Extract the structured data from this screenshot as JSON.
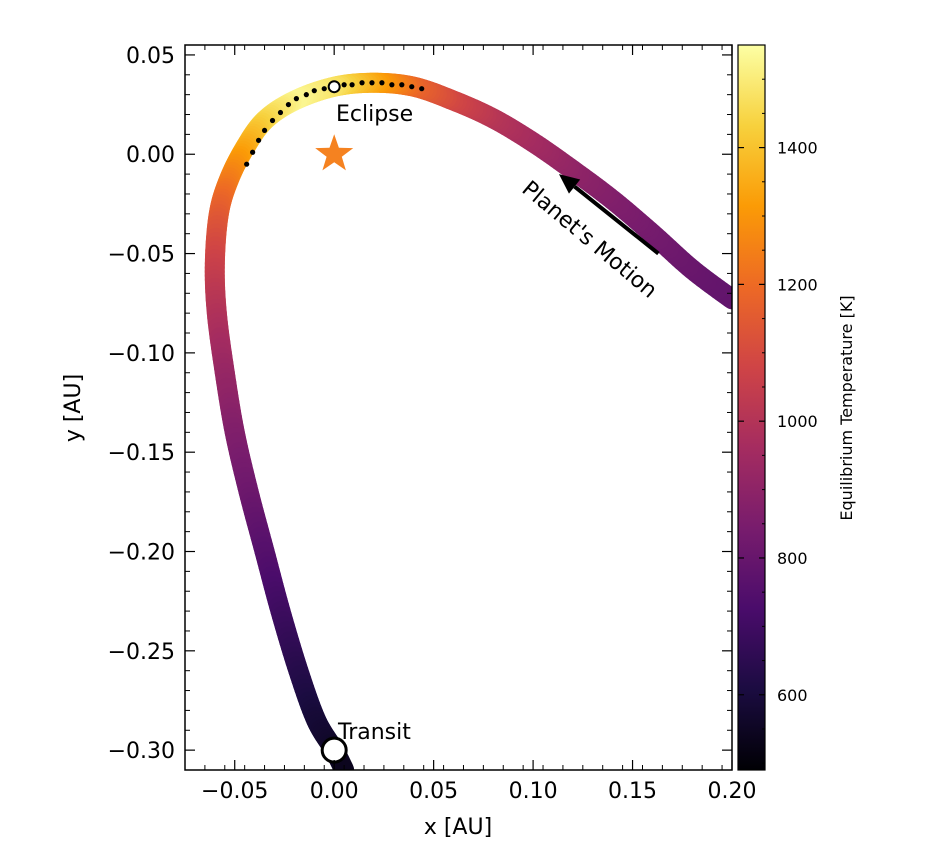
{
  "chart_data": {
    "type": "scatter",
    "title": "",
    "xlabel": "x [AU]",
    "ylabel": "y [AU]",
    "xlim": [
      -0.075,
      0.2
    ],
    "ylim": [
      -0.31,
      0.055
    ],
    "xticks": [
      -0.05,
      0.0,
      0.05,
      0.1,
      0.15,
      0.2
    ],
    "xtick_labels": [
      "−0.05",
      "0.00",
      "0.05",
      "0.10",
      "0.15",
      "0.20"
    ],
    "yticks": [
      0.05,
      0.0,
      -0.05,
      -0.1,
      -0.15,
      -0.2,
      -0.25,
      -0.3
    ],
    "ytick_labels": [
      "0.05",
      "0.00",
      "−0.05",
      "−0.10",
      "−0.15",
      "−0.20",
      "−0.25",
      "−0.30"
    ],
    "grid": false,
    "orbit": {
      "description": "planet orbit colored by equilibrium temperature",
      "points": [
        {
          "x": 0.2,
          "y": -0.073,
          "temp": 780
        },
        {
          "x": 0.18,
          "y": -0.058,
          "temp": 800
        },
        {
          "x": 0.16,
          "y": -0.04,
          "temp": 830
        },
        {
          "x": 0.14,
          "y": -0.023,
          "temp": 860
        },
        {
          "x": 0.12,
          "y": -0.008,
          "temp": 900
        },
        {
          "x": 0.1,
          "y": 0.006,
          "temp": 950
        },
        {
          "x": 0.08,
          "y": 0.018,
          "temp": 1000
        },
        {
          "x": 0.06,
          "y": 0.027,
          "temp": 1080
        },
        {
          "x": 0.04,
          "y": 0.034,
          "temp": 1180
        },
        {
          "x": 0.02,
          "y": 0.036,
          "temp": 1330
        },
        {
          "x": 0.0,
          "y": 0.034,
          "temp": 1470
        },
        {
          "x": -0.02,
          "y": 0.027,
          "temp": 1530
        },
        {
          "x": -0.035,
          "y": 0.017,
          "temp": 1450
        },
        {
          "x": -0.045,
          "y": 0.003,
          "temp": 1350
        },
        {
          "x": -0.053,
          "y": -0.013,
          "temp": 1250
        },
        {
          "x": -0.058,
          "y": -0.03,
          "temp": 1160
        },
        {
          "x": -0.06,
          "y": -0.055,
          "temp": 1070
        },
        {
          "x": -0.059,
          "y": -0.08,
          "temp": 1000
        },
        {
          "x": -0.055,
          "y": -0.11,
          "temp": 930
        },
        {
          "x": -0.05,
          "y": -0.14,
          "temp": 870
        },
        {
          "x": -0.043,
          "y": -0.17,
          "temp": 820
        },
        {
          "x": -0.035,
          "y": -0.2,
          "temp": 760
        },
        {
          "x": -0.027,
          "y": -0.23,
          "temp": 700
        },
        {
          "x": -0.018,
          "y": -0.26,
          "temp": 640
        },
        {
          "x": -0.009,
          "y": -0.285,
          "temp": 590
        },
        {
          "x": 0.0,
          "y": -0.3,
          "temp": 560
        },
        {
          "x": 0.005,
          "y": -0.31,
          "temp": 540
        }
      ]
    },
    "eclipse_track": {
      "x": [
        -0.044,
        -0.041,
        -0.038,
        -0.035,
        -0.031,
        -0.027,
        -0.023,
        -0.019,
        -0.014,
        -0.01,
        -0.005,
        0.0,
        0.005,
        0.009,
        0.014,
        0.019,
        0.024,
        0.029,
        0.034,
        0.039,
        0.044
      ],
      "y": [
        -0.005,
        0.001,
        0.007,
        0.012,
        0.017,
        0.021,
        0.025,
        0.028,
        0.03,
        0.032,
        0.033,
        0.034,
        0.035,
        0.035,
        0.036,
        0.036,
        0.036,
        0.035,
        0.035,
        0.034,
        0.033
      ]
    },
    "star": {
      "x": 0.0,
      "y": 0.0,
      "color": "#f58220"
    },
    "eclipse_marker": {
      "x": 0.0,
      "y": 0.034
    },
    "transit_marker": {
      "x": 0.0,
      "y": -0.3
    },
    "arrow": {
      "from": [
        0.163,
        -0.05
      ],
      "to": [
        0.113,
        -0.01
      ]
    },
    "annotations": {
      "eclipse": "Eclipse",
      "transit": "Transit",
      "motion": "Planet's Motion"
    },
    "colorbar": {
      "label": "Equilibrium Temperature [K]",
      "colormap": "inferno",
      "range": [
        490,
        1550
      ],
      "ticks": [
        600,
        800,
        1000,
        1200,
        1400
      ],
      "tick_labels": [
        "600",
        "800",
        "1000",
        "1200",
        "1400"
      ],
      "stops": [
        "#000004",
        "#1b0c41",
        "#4a0c6b",
        "#781c6d",
        "#a52c60",
        "#cf4446",
        "#ed6925",
        "#fb9b06",
        "#f7d13d",
        "#fcffa4"
      ]
    }
  }
}
